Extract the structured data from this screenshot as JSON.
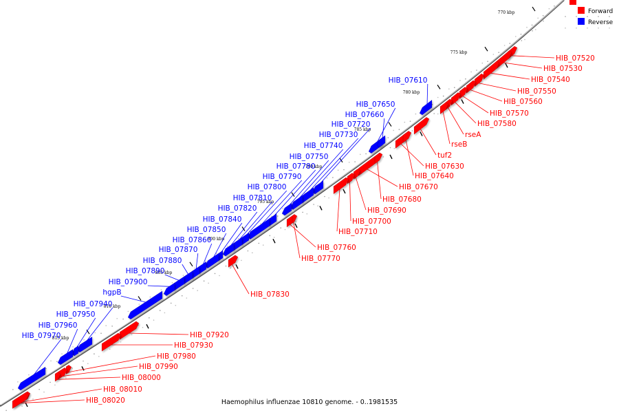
{
  "caption": "Haemophilus influenzae 10810 genome. - 0..1981535",
  "legend": [
    {
      "label": "Forward",
      "color": "#ff0000"
    },
    {
      "label": "Reverse",
      "color": "#0000ff"
    }
  ],
  "colors": {
    "forward": "#ff0000",
    "reverse": "#0000ff",
    "backbone": "#555555"
  },
  "ticks": [
    "770 kbp",
    "775 kbp",
    "780 kbp",
    "785 kbp",
    "790 kbp",
    "795 kbp",
    "800 kbp",
    "805 kbp",
    "810 kbp",
    "815 kbp"
  ],
  "forward_genes": [
    "HIB_07520",
    "HIB_07530",
    "HIB_07540",
    "HIB_07550",
    "HIB_07560",
    "HIB_07570",
    "HIB_07580",
    "rseA",
    "rseB",
    "tuf2",
    "HIB_07630",
    "HIB_07640",
    "HIB_07670",
    "HIB_07680",
    "HIB_07690",
    "HIB_07700",
    "HIB_07710",
    "HIB_07760",
    "HIB_07770",
    "HIB_07830",
    "HIB_07920",
    "HIB_07930",
    "HIB_07980",
    "HIB_07990",
    "HIB_08000",
    "HIB_08010",
    "HIB_08020"
  ],
  "reverse_genes": [
    "HIB_07610",
    "HIB_07650",
    "HIB_07660",
    "HIB_07720",
    "HIB_07730",
    "HIB_07740",
    "HIB_07750",
    "HIB_07780",
    "HIB_07790",
    "HIB_07800",
    "HIB_07810",
    "HIB_07820",
    "HIB_07840",
    "HIB_07850",
    "HIB_07860",
    "HIB_07870",
    "HIB_07880",
    "HIB_07890",
    "HIB_07900",
    "hgpB",
    "HIB_07940",
    "HIB_07950",
    "HIB_07960",
    "HIB_07970"
  ]
}
